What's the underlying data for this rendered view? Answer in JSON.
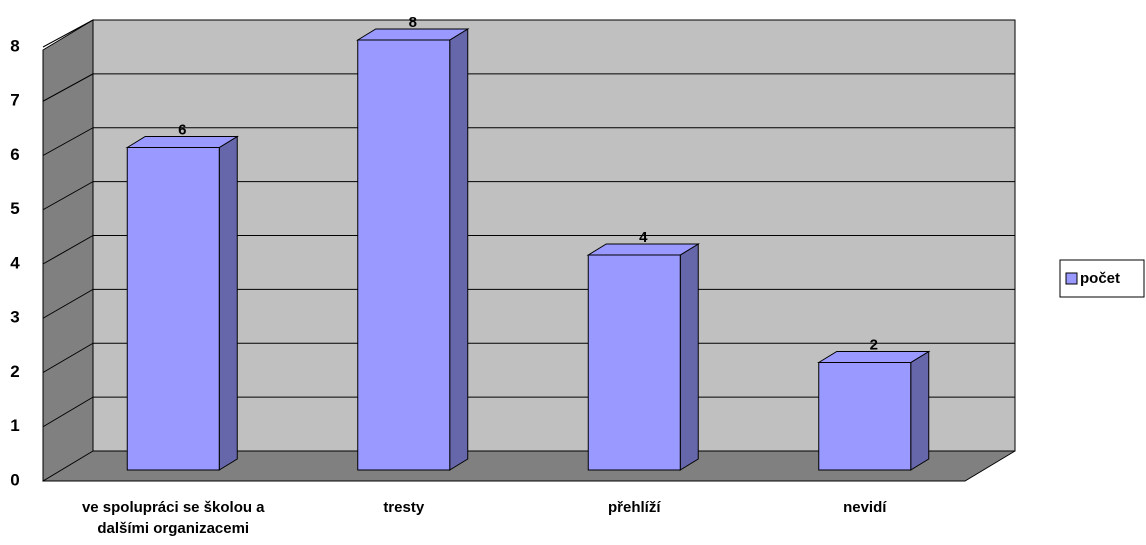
{
  "chart_data": {
    "type": "bar3d",
    "categories": [
      "ve spolupráci se školou a dalšími organizacemi",
      "tresty",
      "přehlíží",
      "nevidí"
    ],
    "series": [
      {
        "name": "počet",
        "color": "#9999ff",
        "values": [
          6,
          8,
          4,
          2
        ]
      }
    ],
    "ylim": [
      0,
      8
    ],
    "yticks": [
      0,
      1,
      2,
      3,
      4,
      5,
      6,
      7,
      8
    ],
    "grid": true,
    "legend": "right",
    "data_labels": true
  }
}
